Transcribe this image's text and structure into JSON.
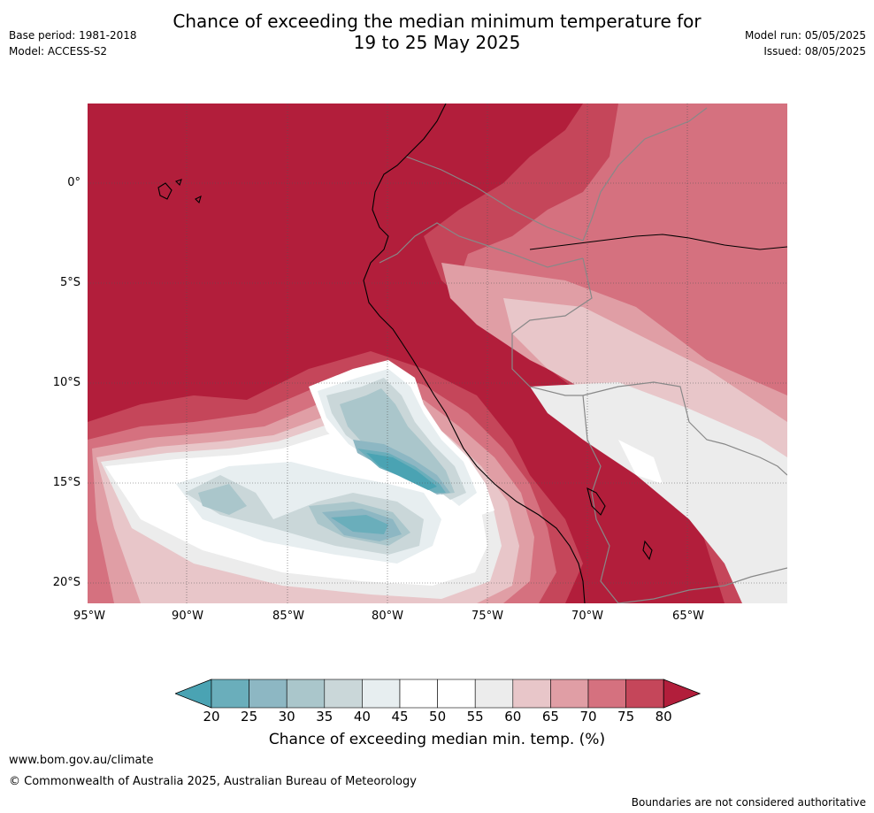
{
  "header": {
    "title_line1": "Chance of exceeding the median minimum temperature for",
    "title_line2": "19 to 25 May 2025",
    "base_period": "Base period: 1981-2018",
    "model": "Model: ACCESS-S2",
    "model_run": "Model run: 05/05/2025",
    "issued": "Issued: 08/05/2025"
  },
  "map": {
    "lon_ticks": [
      "95°W",
      "90°W",
      "85°W",
      "80°W",
      "75°W",
      "70°W",
      "65°W"
    ],
    "lat_ticks": [
      "0°",
      "5°S",
      "10°S",
      "15°S",
      "20°S"
    ],
    "colors": {
      "c80": "#b21e3b",
      "c75": "#c5465a",
      "c70": "#d5717f",
      "c65": "#e09ea5",
      "c60": "#e8c6c9",
      "c55": "#ececec",
      "c50": "#ffffff",
      "c45": "#e7eef0",
      "c40": "#cad7d9",
      "c35": "#aac6cb",
      "c30": "#8db7c3",
      "c25": "#6aaebb",
      "c20": "#4aa3b3"
    }
  },
  "colorbar": {
    "labels": [
      "20",
      "25",
      "30",
      "35",
      "40",
      "45",
      "50",
      "55",
      "60",
      "65",
      "70",
      "75",
      "80"
    ],
    "colors": [
      "#4aa3b3",
      "#6aaebb",
      "#8db7c3",
      "#aac6cb",
      "#cad7d9",
      "#e7eef0",
      "#ffffff",
      "#ffffff",
      "#ececec",
      "#e8c6c9",
      "#e09ea5",
      "#d5717f",
      "#c5465a",
      "#b21e3b"
    ],
    "title": "Chance of exceeding median min. temp. (%)"
  },
  "footer": {
    "website": "www.bom.gov.au/climate",
    "copyright": "© Commonwealth of Australia 2025, Australian Bureau of Meteorology",
    "disclaimer": "Boundaries are not considered authoritative"
  }
}
